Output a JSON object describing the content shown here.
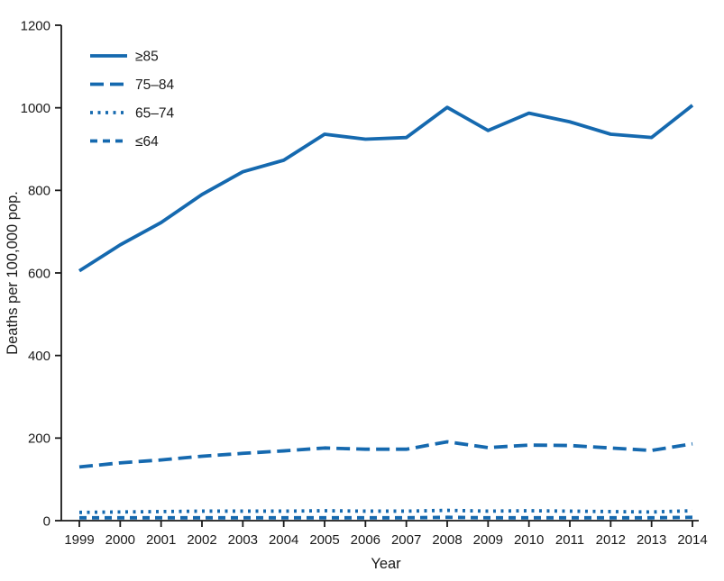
{
  "chart_data": {
    "type": "line",
    "title": "",
    "xlabel": "Year",
    "ylabel": "Deaths per 100,000 pop.",
    "ylim": [
      0,
      1200
    ],
    "yticks": [
      0,
      200,
      400,
      600,
      800,
      1000,
      1200
    ],
    "x": [
      1999,
      2000,
      2001,
      2002,
      2003,
      2004,
      2005,
      2006,
      2007,
      2008,
      2009,
      2010,
      2011,
      2012,
      2013,
      2014
    ],
    "series": [
      {
        "name": "≥85",
        "style": "solid",
        "values": [
          605,
          668,
          722,
          790,
          845,
          873,
          936,
          924,
          928,
          1001,
          945,
          987,
          966,
          936,
          928,
          1006
        ]
      },
      {
        "name": "75–84",
        "style": "long-dash",
        "values": [
          130,
          140,
          147,
          156,
          163,
          169,
          176,
          173,
          173,
          191,
          177,
          183,
          182,
          176,
          170,
          186
        ]
      },
      {
        "name": "65–74",
        "style": "dotted",
        "values": [
          20,
          21,
          22,
          23,
          23,
          23,
          24,
          23,
          23,
          25,
          23,
          24,
          23,
          22,
          21,
          24
        ]
      },
      {
        "name": "≤64",
        "style": "short-dash",
        "values": [
          7,
          7,
          7,
          7,
          7,
          7,
          7,
          7,
          7,
          8,
          7,
          7,
          7,
          7,
          7,
          8
        ]
      }
    ],
    "line_color": "#1569af",
    "axis_color": "#1a1a1a",
    "grid": false,
    "legend_position": "top-left"
  }
}
